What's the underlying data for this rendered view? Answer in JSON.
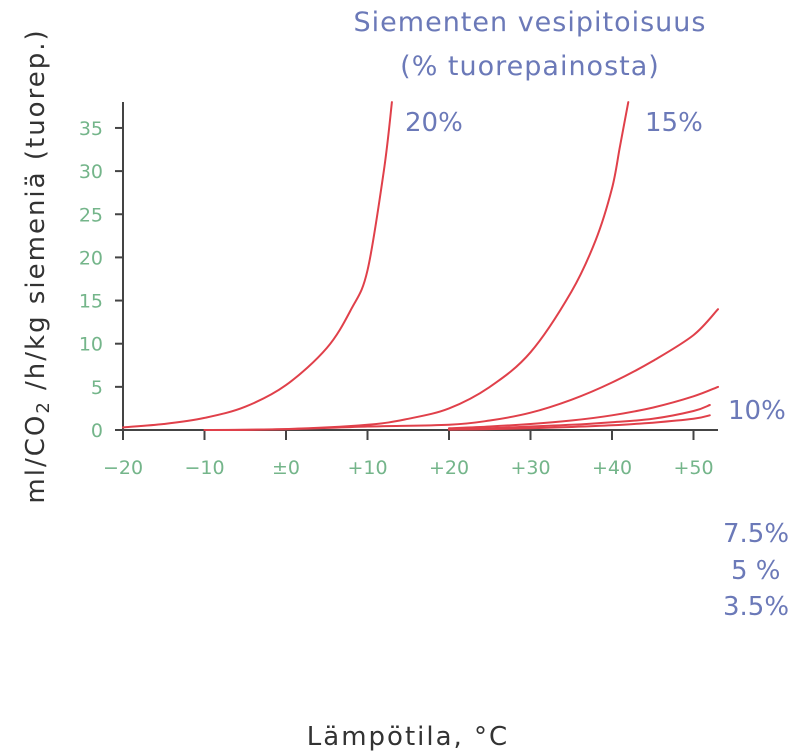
{
  "chart_data": {
    "type": "line",
    "title_lines": [
      "Siementen vesipitoisuus",
      "(% tuorepainosta)"
    ],
    "xlabel": "Lämpötila, °C",
    "ylabel": {
      "main": "ml/CO",
      "sub": "2",
      "rest": " /h/kg siemeniä (tuorep.)"
    },
    "xlim": [
      -20,
      54
    ],
    "ylim": [
      0,
      38
    ],
    "x_ticks": [
      -20,
      -10,
      0,
      10,
      20,
      30,
      40,
      50
    ],
    "x_tick_labels": [
      "−20",
      "−10",
      "±0",
      "+10",
      "+20",
      "+30",
      "+40",
      "+50"
    ],
    "y_ticks": [
      0,
      5,
      10,
      15,
      20,
      25,
      30,
      35
    ],
    "y_tick_labels": [
      "0",
      "5",
      "10",
      "15",
      "20",
      "25",
      "30",
      "35"
    ],
    "grid": false,
    "colors": {
      "curve": "#e0404a",
      "title": "#6b79b8",
      "ticks": "#74b58a",
      "axis": "#444444"
    },
    "series": [
      {
        "name": "20%",
        "x": [
          -20,
          -15,
          -10,
          -5,
          0,
          5,
          8,
          10,
          12,
          13
        ],
        "y": [
          0.3,
          0.7,
          1.4,
          2.7,
          5.2,
          9.5,
          14,
          18.5,
          30,
          38
        ]
      },
      {
        "name": "15%",
        "x": [
          -10,
          0,
          10,
          15,
          20,
          25,
          30,
          35,
          38,
          40,
          41,
          42
        ],
        "y": [
          0,
          0.1,
          0.6,
          1.3,
          2.5,
          5,
          9,
          16,
          22,
          28,
          33,
          38
        ]
      },
      {
        "name": "10%",
        "x": [
          -10,
          0,
          10,
          20,
          25,
          30,
          35,
          40,
          45,
          50,
          53
        ],
        "y": [
          0,
          0.1,
          0.4,
          0.6,
          1.1,
          2,
          3.5,
          5.5,
          8,
          11,
          14
        ]
      },
      {
        "name": "7.5%",
        "x": [
          20,
          25,
          30,
          35,
          40,
          45,
          50,
          53
        ],
        "y": [
          0.2,
          0.4,
          0.7,
          1.1,
          1.7,
          2.6,
          3.9,
          5
        ]
      },
      {
        "name": "5 %",
        "x": [
          20,
          25,
          30,
          35,
          40,
          45,
          50,
          52
        ],
        "y": [
          0.1,
          0.2,
          0.4,
          0.6,
          0.9,
          1.3,
          2.2,
          2.9
        ]
      },
      {
        "name": "3.5%",
        "x": [
          20,
          25,
          30,
          35,
          40,
          45,
          50,
          52
        ],
        "y": [
          0.05,
          0.1,
          0.2,
          0.35,
          0.55,
          0.85,
          1.3,
          1.7
        ]
      }
    ]
  }
}
